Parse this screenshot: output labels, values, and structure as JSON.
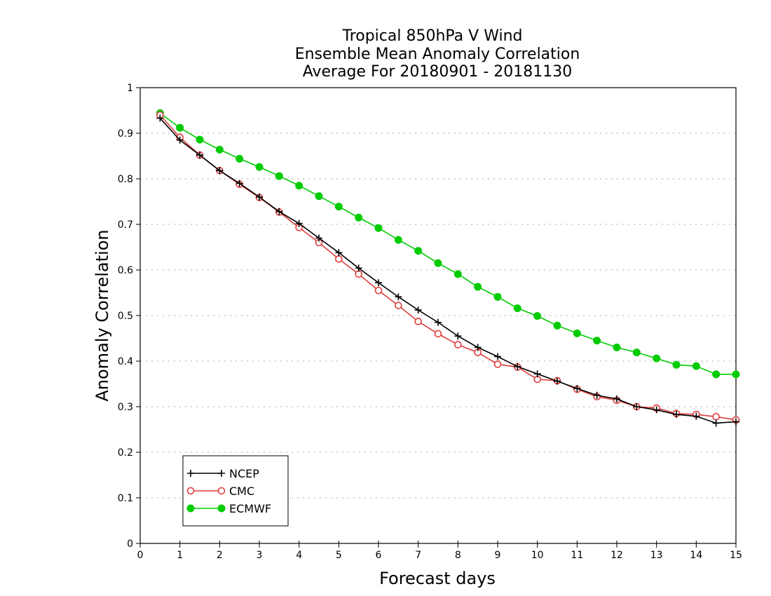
{
  "chart_data": {
    "type": "line",
    "title_lines": [
      "Tropical 850hPa V Wind",
      "Ensemble Mean Anomaly Correlation",
      "Average For 20180901 - 20181130"
    ],
    "xlabel": "Forecast days",
    "ylabel": "Anomaly Correlation",
    "xlim": [
      0,
      15
    ],
    "ylim": [
      0,
      1
    ],
    "xticks": [
      0,
      1,
      2,
      3,
      4,
      5,
      6,
      7,
      8,
      9,
      10,
      11,
      12,
      13,
      14,
      15
    ],
    "xtick_labels": [
      "0",
      "1",
      "2",
      "3",
      "4",
      "5",
      "6",
      "7",
      "8",
      "9",
      "10",
      "11",
      "12",
      "13",
      "14",
      "15"
    ],
    "yticks": [
      0,
      0.1,
      0.2,
      0.3,
      0.4,
      0.5,
      0.6,
      0.7,
      0.8,
      0.9,
      1
    ],
    "ytick_labels": [
      "0",
      "0.1",
      "0.2",
      "0.3",
      "0.4",
      "0.5",
      "0.6",
      "0.7",
      "0.8",
      "0.9",
      "1"
    ],
    "grid": true,
    "legend_position": "bottom-left",
    "x": [
      0.5,
      1,
      1.5,
      2,
      2.5,
      3,
      3.5,
      4,
      4.5,
      5,
      5.5,
      6,
      6.5,
      7,
      7.5,
      8,
      8.5,
      9,
      9.5,
      10,
      10.5,
      11,
      11.5,
      12,
      12.5,
      13,
      13.5,
      14,
      14.5,
      15
    ],
    "series": [
      {
        "name": "NCEP",
        "color": "#000000",
        "marker": "plus",
        "values": [
          0.933,
          0.885,
          0.852,
          0.818,
          0.79,
          0.76,
          0.728,
          0.702,
          0.67,
          0.638,
          0.604,
          0.572,
          0.541,
          0.512,
          0.485,
          0.455,
          0.43,
          0.41,
          0.388,
          0.372,
          0.356,
          0.34,
          0.325,
          0.317,
          0.3,
          0.293,
          0.283,
          0.279,
          0.264,
          0.267
        ]
      },
      {
        "name": "CMC",
        "color": "#e03c3c",
        "marker": "open-circle",
        "values": [
          0.94,
          0.891,
          0.852,
          0.818,
          0.788,
          0.759,
          0.727,
          0.693,
          0.66,
          0.624,
          0.591,
          0.555,
          0.522,
          0.487,
          0.46,
          0.436,
          0.419,
          0.393,
          0.387,
          0.36,
          0.357,
          0.338,
          0.322,
          0.314,
          0.3,
          0.297,
          0.285,
          0.283,
          0.278,
          0.271
        ]
      },
      {
        "name": "ECMWF",
        "color": "#00cc00",
        "marker": "filled-circle",
        "values": [
          0.944,
          0.912,
          0.886,
          0.864,
          0.844,
          0.826,
          0.806,
          0.785,
          0.762,
          0.739,
          0.715,
          0.692,
          0.666,
          0.642,
          0.615,
          0.591,
          0.563,
          0.541,
          0.516,
          0.499,
          0.478,
          0.461,
          0.445,
          0.43,
          0.419,
          0.406,
          0.392,
          0.389,
          0.371,
          0.371
        ]
      }
    ]
  }
}
